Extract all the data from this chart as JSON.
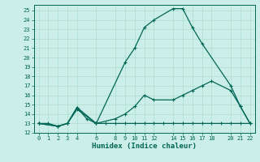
{
  "xlabel": "Humidex (Indice chaleur)",
  "bg_color": "#cceee8",
  "grid_color": "#aaddcc",
  "line_color": "#006655",
  "xlim": [
    -0.5,
    22.5
  ],
  "ylim": [
    12,
    25.6
  ],
  "xticks": [
    0,
    1,
    2,
    3,
    4,
    6,
    8,
    9,
    10,
    11,
    12,
    14,
    15,
    16,
    17,
    18,
    20,
    21,
    22
  ],
  "yticks": [
    12,
    13,
    14,
    15,
    16,
    17,
    18,
    19,
    20,
    21,
    22,
    23,
    24,
    25
  ],
  "line1_x": [
    0,
    1,
    2,
    3,
    4,
    5,
    6,
    7,
    8,
    9,
    10,
    11,
    12,
    13,
    14,
    15,
    16,
    17,
    18,
    19,
    20,
    21,
    22
  ],
  "line1_y": [
    13,
    13,
    12.7,
    13,
    14.7,
    13.5,
    13,
    13,
    13,
    13,
    13,
    13,
    13,
    13,
    13,
    13,
    13,
    13,
    13,
    13,
    13,
    13,
    13
  ],
  "line2_x": [
    0,
    2,
    3,
    4,
    6,
    8,
    9,
    10,
    11,
    12,
    14,
    15,
    16,
    17,
    18,
    20,
    21,
    22
  ],
  "line2_y": [
    13,
    12.7,
    13,
    14.5,
    13,
    13.5,
    14.0,
    14.8,
    16.0,
    15.5,
    15.5,
    16.0,
    16.5,
    17.0,
    17.5,
    16.5,
    14.8,
    13
  ],
  "line3_x": [
    0,
    2,
    3,
    4,
    6,
    9,
    10,
    11,
    12,
    14,
    15,
    16,
    17,
    20,
    21,
    22
  ],
  "line3_y": [
    13,
    12.7,
    13,
    14.7,
    13,
    19.5,
    21.0,
    23.2,
    24.0,
    25.2,
    25.2,
    23.2,
    21.5,
    17.0,
    14.8,
    13
  ]
}
